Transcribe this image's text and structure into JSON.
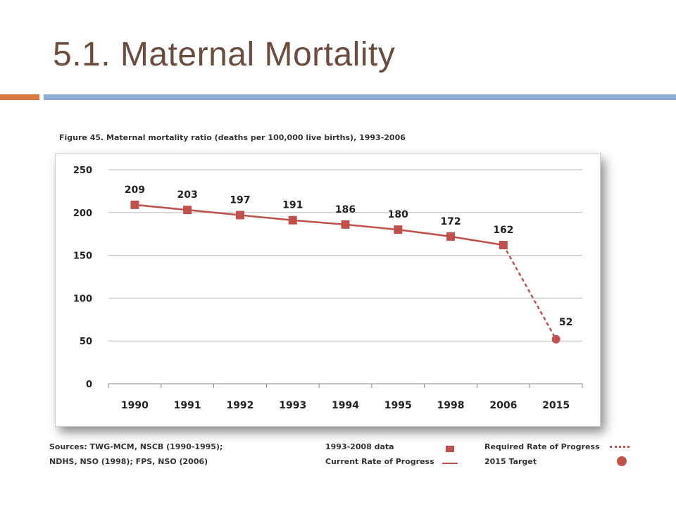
{
  "slide": {
    "title": "5.1. Maternal Mortality"
  },
  "figure": {
    "caption": "Figure 45. Maternal mortality ratio (deaths per 100,000 live births), 1993-2006",
    "sources_line1": "Sources: TWG-MCM, NSCB (1990-1995);",
    "sources_line2": "NDHS, NSO (1998); FPS, NSO (2006)"
  },
  "legend": {
    "data_label": "1993-2008 data",
    "current_rate_label": "Current Rate of Progress",
    "required_rate_label": "Required Rate of Progress",
    "target_label": "2015 Target"
  },
  "colors": {
    "series": "#c0504d",
    "title": "#6b4d3f",
    "accent_orange": "#d9783c",
    "accent_blue": "#8fafd2"
  },
  "chart_data": {
    "type": "line",
    "categories": [
      "1990",
      "1991",
      "1992",
      "1993",
      "1994",
      "1995",
      "1998",
      "2006",
      "2015"
    ],
    "series": [
      {
        "values": [
          209,
          203,
          197,
          191,
          186,
          180,
          172,
          162,
          null
        ],
        "style": "solid",
        "marker": "square"
      },
      {
        "values": [
          null,
          null,
          null,
          null,
          null,
          null,
          null,
          162,
          52
        ],
        "style": "dashed",
        "marker": "circle"
      }
    ],
    "data_labels": [
      "209",
      "203",
      "197",
      "191",
      "186",
      "180",
      "172",
      "162",
      "52"
    ],
    "yticks": [
      "0",
      "50",
      "100",
      "150",
      "200",
      "250"
    ],
    "ylim": [
      0,
      250
    ],
    "grid": true,
    "legend_position": "bottom"
  }
}
